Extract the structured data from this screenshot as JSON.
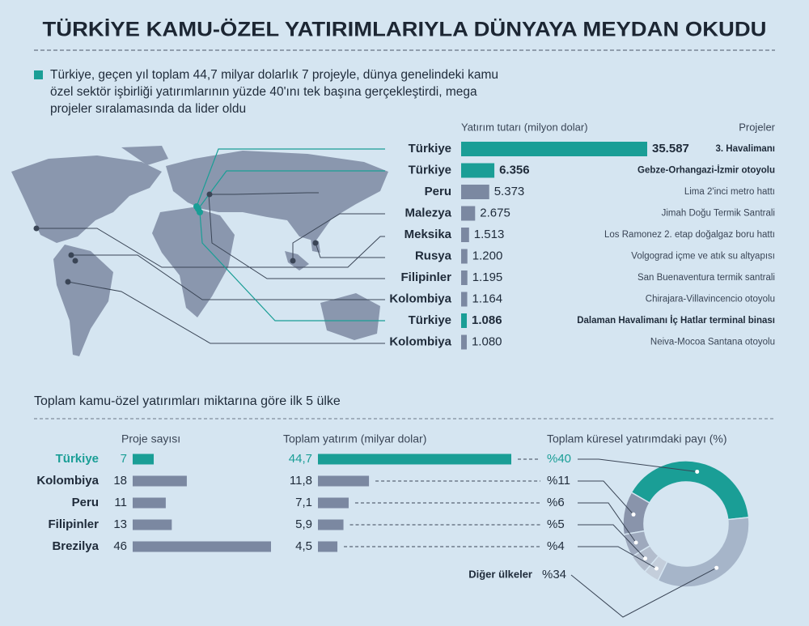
{
  "title": "TÜRKİYE KAMU-ÖZEL YATIRIMLARIYLA DÜNYAYA MEYDAN OKUDU",
  "intro": "Türkiye, geçen yıl toplam 44,7 milyar dolarlık 7 projeyle, dünya genelindeki kamu özel sektör işbirliği yatırımlarının yüzde 40'ını tek başına gerçekleştirdi, mega projeler sıralamasında da lider oldu",
  "section_title": "Toplam kamu-özel yatırımları miktarına göre ilk 5 ülke",
  "chart_data": [
    {
      "type": "bar",
      "orientation": "horizontal",
      "value_title": "Yatırım tutarı (milyon dolar)",
      "projects_title": "Projeler",
      "categories": [
        "Türkiye",
        "Türkiye",
        "Peru",
        "Malezya",
        "Meksika",
        "Rusya",
        "Filipinler",
        "Kolombiya",
        "Türkiye",
        "Kolombiya"
      ],
      "values": [
        35587,
        6356,
        5373,
        2675,
        1513,
        1200,
        1195,
        1164,
        1086,
        1080
      ],
      "value_labels": [
        "35.587",
        "6.356",
        "5.373",
        "2.675",
        "1.513",
        "1.200",
        "1.195",
        "1.164",
        "1.086",
        "1.080"
      ],
      "projects": [
        "3. Havalimanı",
        "Gebze-Orhangazi-İzmir otoyolu",
        "Lima 2'inci metro hattı",
        "Jimah Doğu Termik Santrali",
        "Los Ramonez 2. etap doğalgaz boru hattı",
        "Volgograd içme ve atık su altyapısı",
        "San Buenaventura termik santrali",
        "Chirajara-Villavincencio otoyolu",
        "Dalaman Havalimanı İç Hatlar terminal binası",
        "Neiva-Mocoa Santana otoyolu"
      ],
      "colors": [
        "#1a9e96",
        "#1a9e96",
        "#7b88a1",
        "#7b88a1",
        "#7b88a1",
        "#7b88a1",
        "#7b88a1",
        "#7b88a1",
        "#1a9e96",
        "#7b88a1"
      ],
      "highlight_color": "#1a9e96"
    },
    {
      "type": "bar",
      "orientation": "horizontal",
      "title": "Proje sayısı",
      "categories": [
        "Türkiye",
        "Kolombiya",
        "Peru",
        "Filipinler",
        "Brezilya"
      ],
      "values": [
        7,
        18,
        11,
        13,
        46
      ],
      "colors": [
        "#1a9e96",
        "#7b88a1",
        "#7b88a1",
        "#7b88a1",
        "#7b88a1"
      ],
      "highlight_color": "#1a9e96"
    },
    {
      "type": "bar",
      "orientation": "horizontal",
      "title": "Toplam yatırım (milyar dolar)",
      "categories": [
        "Türkiye",
        "Kolombiya",
        "Peru",
        "Filipinler",
        "Brezilya"
      ],
      "values": [
        44.7,
        11.8,
        7.1,
        5.9,
        4.5
      ],
      "value_labels": [
        "44,7",
        "11,8",
        "7,1",
        "5,9",
        "4,5"
      ],
      "colors": [
        "#1a9e96",
        "#7b88a1",
        "#7b88a1",
        "#7b88a1",
        "#7b88a1"
      ],
      "highlight_color": "#1a9e96"
    },
    {
      "type": "donut",
      "title": "Toplam küresel yatırımdaki payı (%)",
      "categories": [
        "Türkiye",
        "Kolombiya",
        "Peru",
        "Filipinler",
        "Brezilya",
        "Diğer ülkeler"
      ],
      "values": [
        40,
        11,
        6,
        5,
        4,
        34
      ],
      "value_labels": [
        "%40",
        "%11",
        "%6",
        "%5",
        "%4",
        "%34"
      ],
      "colors": [
        "#1a9e96",
        "#8994ab",
        "#9ea9bd",
        "#b3bdcd",
        "#c4cedb",
        "#a6b5c9"
      ],
      "highlight_color": "#1a9e96"
    }
  ]
}
